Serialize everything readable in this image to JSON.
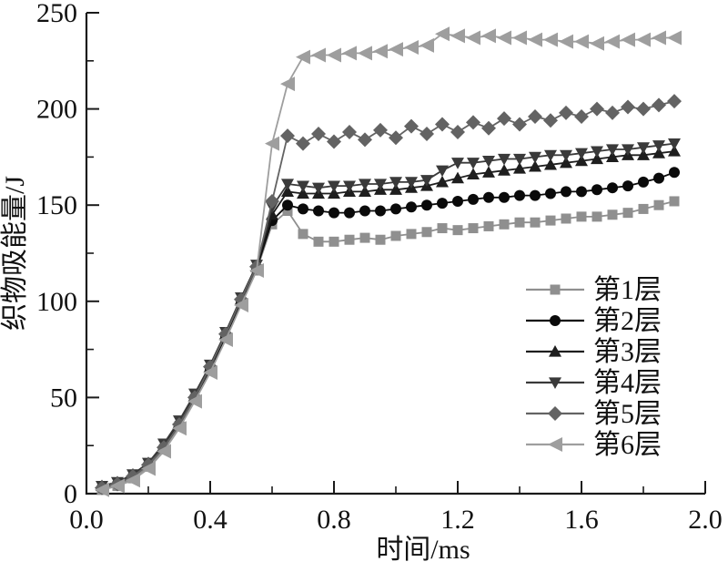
{
  "figure": {
    "background": "#ffffff",
    "axis_color": "#1a1a1a"
  },
  "chart_data": {
    "type": "line",
    "title": "",
    "xlabel": "时间/ms",
    "ylabel": "织物吸能量/J",
    "xlim": [
      0.0,
      2.0
    ],
    "ylim": [
      0,
      250
    ],
    "grid": false,
    "legend_position": "inside-right-middle",
    "x_tick_values": [
      0,
      0.4,
      0.8,
      1.2,
      1.6,
      2.0
    ],
    "x_tick_labels": [
      "0.0",
      "0.4",
      "0.8",
      "1.2",
      "1.6",
      "2.0"
    ],
    "x_minor_tick_values": [
      0.2,
      0.6,
      1.0,
      1.4,
      1.8
    ],
    "y_tick_values": [
      0,
      50,
      100,
      150,
      200,
      250
    ],
    "y_tick_labels": [
      "0",
      "50",
      "100",
      "150",
      "200",
      "250"
    ],
    "y_minor_tick_values": [
      25,
      75,
      125,
      175,
      225
    ],
    "x": [
      0.05,
      0.1,
      0.15,
      0.2,
      0.25,
      0.3,
      0.35,
      0.4,
      0.45,
      0.5,
      0.55,
      0.6,
      0.65,
      0.7,
      0.75,
      0.8,
      0.85,
      0.9,
      0.95,
      1.0,
      1.05,
      1.1,
      1.15,
      1.2,
      1.25,
      1.3,
      1.35,
      1.4,
      1.45,
      1.5,
      1.55,
      1.6,
      1.65,
      1.7,
      1.75,
      1.8,
      1.85,
      1.9
    ],
    "series": [
      {
        "name": "第1层",
        "marker": "square",
        "color": "#8f8f8f",
        "values": [
          2,
          4,
          8,
          14,
          23,
          35,
          49,
          64,
          81,
          99,
          116,
          140,
          147,
          135,
          131,
          131,
          132,
          133,
          132,
          134,
          135,
          136,
          138,
          137,
          138,
          139,
          140,
          141,
          141,
          142,
          143,
          144,
          144,
          145,
          146,
          148,
          150,
          152
        ]
      },
      {
        "name": "第2层",
        "marker": "circle",
        "color": "#0a0a0a",
        "values": [
          3,
          5,
          9,
          15,
          24,
          36,
          50,
          65,
          82,
          100,
          117,
          142,
          150,
          148,
          147,
          146,
          146,
          147,
          147,
          148,
          149,
          150,
          151,
          152,
          153,
          154,
          154,
          155,
          155,
          156,
          157,
          157,
          158,
          159,
          160,
          162,
          164,
          167
        ]
      },
      {
        "name": "第3层",
        "marker": "triangle-up",
        "color": "#1e1e1e",
        "values": [
          4,
          6,
          10,
          16,
          25,
          37,
          51,
          66,
          83,
          101,
          118,
          145,
          157,
          156,
          156,
          156,
          157,
          157,
          158,
          158,
          159,
          160,
          162,
          164,
          166,
          167,
          168,
          169,
          170,
          171,
          172,
          173,
          174,
          175,
          176,
          176,
          177,
          178
        ]
      },
      {
        "name": "第4层",
        "marker": "triangle-down",
        "color": "#3a3a3a",
        "values": [
          4,
          6,
          10,
          16,
          26,
          38,
          52,
          67,
          84,
          102,
          119,
          149,
          161,
          160,
          159,
          160,
          160,
          161,
          161,
          162,
          162,
          163,
          168,
          172,
          172,
          173,
          174,
          174,
          175,
          176,
          176,
          177,
          178,
          179,
          179,
          180,
          181,
          182
        ]
      },
      {
        "name": "第5层",
        "marker": "diamond",
        "color": "#636363",
        "values": [
          3,
          5,
          9,
          15,
          24,
          36,
          50,
          66,
          83,
          101,
          118,
          152,
          186,
          182,
          187,
          183,
          188,
          184,
          189,
          185,
          191,
          187,
          192,
          188,
          193,
          190,
          195,
          192,
          196,
          194,
          198,
          196,
          200,
          198,
          201,
          200,
          202,
          204
        ]
      },
      {
        "name": "第6层",
        "marker": "triangle-left",
        "color": "#9e9e9e",
        "values": [
          2,
          4,
          7,
          13,
          22,
          34,
          48,
          63,
          80,
          98,
          116,
          182,
          213,
          227,
          228,
          228,
          229,
          229,
          230,
          231,
          232,
          233,
          239,
          238,
          237,
          238,
          237,
          237,
          236,
          236,
          235,
          235,
          234,
          235,
          236,
          236,
          237,
          237
        ]
      }
    ]
  }
}
